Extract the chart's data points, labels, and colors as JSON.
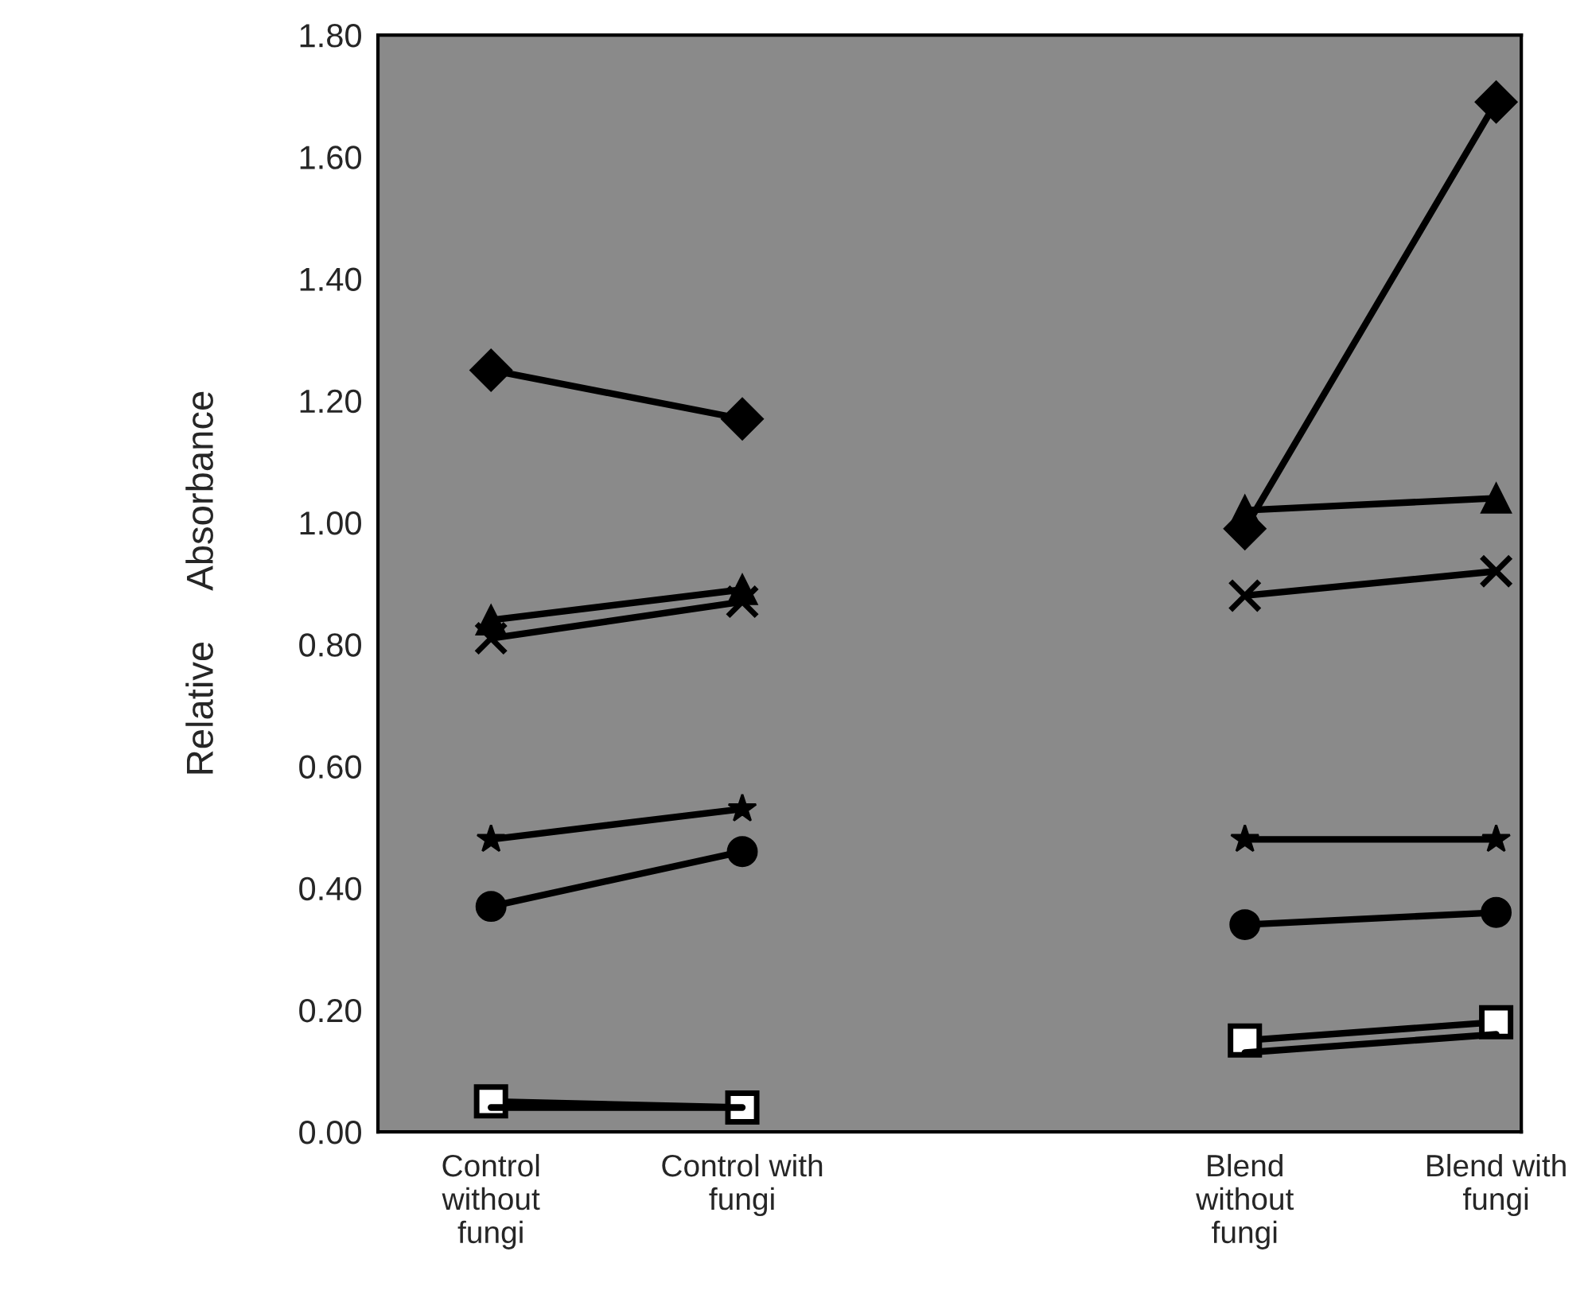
{
  "chart_data": {
    "type": "line",
    "ylabel": "Relative     Absorbance",
    "categories": [
      "Control\nwithout\nfungi",
      "Control with\nfungi",
      null,
      "Blend\nwithout\nfungi",
      "Blend with\nfungi"
    ],
    "series": [
      {
        "color": "#000000",
        "marker": "diamond",
        "values": [
          1.25,
          1.17,
          null,
          0.99,
          1.69
        ]
      },
      {
        "color": "#000000",
        "marker": "triangle",
        "values": [
          0.84,
          0.89,
          null,
          1.02,
          1.04
        ]
      },
      {
        "color": "#000000",
        "marker": "cross",
        "values": [
          0.81,
          0.87,
          null,
          0.88,
          0.92
        ]
      },
      {
        "color": "#000000",
        "marker": "star",
        "values": [
          0.48,
          0.53,
          null,
          0.48,
          0.48
        ]
      },
      {
        "color": "#000000",
        "marker": "circle",
        "values": [
          0.37,
          0.46,
          null,
          0.34,
          0.36
        ]
      },
      {
        "color": "#000000",
        "marker": "square",
        "values": [
          0.05,
          0.04,
          null,
          0.15,
          0.18
        ]
      },
      {
        "color": "#000000",
        "marker": "none",
        "values": [
          0.04,
          0.04,
          null,
          0.13,
          0.16
        ]
      }
    ],
    "ylim": [
      0,
      1.8
    ],
    "yticks": [
      {
        "value": 0,
        "label": "0.00"
      },
      {
        "value": 0.2,
        "label": "0.20"
      },
      {
        "value": 0.4,
        "label": "0.40"
      },
      {
        "value": 0.6,
        "label": "0.60"
      },
      {
        "value": 0.8,
        "label": "0.80"
      },
      {
        "value": 1.0,
        "label": "1.00"
      },
      {
        "value": 1.2,
        "label": "1.20"
      },
      {
        "value": 1.4,
        "label": "1.40"
      },
      {
        "value": 1.6,
        "label": "1.60"
      },
      {
        "value": 1.8,
        "label": "1.80"
      }
    ],
    "grid": false,
    "legend": false,
    "line_style": "solid"
  }
}
